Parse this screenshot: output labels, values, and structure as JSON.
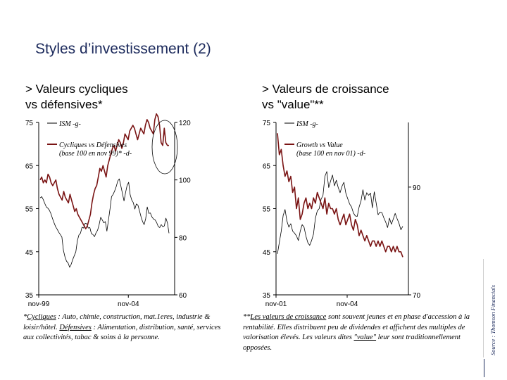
{
  "title": "Styles d’investissement (2)",
  "left": {
    "subtitle_line1": "> Valeurs cycliques",
    "subtitle_line2": "vs défensives*",
    "note": {
      "t1": "*",
      "t2": "Cycliques",
      "t3": " : Auto, chimie, construction, mat.1eres, industrie & loisir/hôtel. ",
      "t4": "Défensives",
      "t5": " : Alimentation, distribution, santé, services aux collectivités, tabac & soins à la personne."
    }
  },
  "right": {
    "subtitle_line1": "> Valeurs de croissance",
    "subtitle_line2": "vs \"value\"**",
    "note": {
      "t1": "**",
      "t2": "Les valeurs de croissance",
      "t3": " sont souvent jeunes et en phase d'accession à la rentabilité. Elles distribuent peu de dividendes et affichent des multiples de valorisation élevés. Les valeurs dites ",
      "t4": "\"value\"",
      "t5": " leur sont traditionnellement opposées."
    }
  },
  "source": "Source : Thomson Financials",
  "colors": {
    "title": "#1c2a5c",
    "series_ratio": "#7a1414",
    "series_ism": "#000000"
  },
  "chart_data": [
    {
      "type": "line",
      "title": "",
      "xlabel": "",
      "ylabel": "",
      "x_ticks": [
        "nov-99",
        "nov-04"
      ],
      "x_range": [
        "1999-11",
        "2007-06"
      ],
      "y_left_ticks": [
        "35",
        "45",
        "55",
        "65",
        "75"
      ],
      "y_left_lim": [
        35,
        75
      ],
      "y_right_ticks": [
        "60",
        "80",
        "100",
        "120"
      ],
      "y_right_lim": [
        60,
        120
      ],
      "legend": [
        "ISM -g-",
        "Cycliques vs Défensives (base 100 en nov 99)* -d-"
      ],
      "annotation": "circle-around-latest-values",
      "series": [
        {
          "name": "ISM -g-",
          "axis": "left",
          "color": "#000000",
          "values": [
            57.5,
            57.8,
            57.1,
            56.2,
            55.4,
            55.1,
            54.6,
            53.8,
            52.7,
            51.7,
            50.8,
            50.2,
            49.5,
            49.0,
            48.4,
            45.3,
            43.8,
            42.8,
            42.4,
            41.4,
            42.1,
            43.2,
            44.1,
            45.0,
            47.6,
            48.9,
            49.3,
            50.7,
            50.5,
            51.6,
            51.5,
            50.5,
            50.6,
            49.2,
            49.0,
            48.5,
            49.4,
            50.0,
            51.3,
            53.0,
            52.4,
            51.7,
            52.0,
            49.8,
            52.3,
            54.9,
            57.8,
            58.3,
            59.1,
            60.1,
            61.4,
            61.9,
            60.2,
            58.5,
            56.8,
            58.7,
            60.4,
            61.1,
            58.2,
            57.0,
            56.4,
            54.9,
            56.1,
            55.8,
            54.5,
            53.1,
            52.0,
            51.3,
            52.7,
            55.4,
            53.9,
            54.0,
            53.1,
            52.6,
            52.4,
            51.8,
            50.9,
            50.6,
            51.3,
            50.8,
            51.0,
            52.8,
            51.7,
            49.3
          ]
        },
        {
          "name": "Cycliques vs Défensives (base 100 en nov 99)* -d-",
          "axis": "right",
          "color": "#7a1414",
          "values": [
            100,
            101,
            99,
            100,
            99,
            102,
            101,
            99,
            98,
            99,
            100,
            97,
            95,
            94,
            93,
            96,
            94,
            93,
            92,
            95,
            93,
            91,
            89,
            90,
            88,
            87,
            86,
            85,
            84,
            83,
            84,
            86,
            88,
            92,
            95,
            97,
            98,
            101,
            104,
            103,
            105,
            103,
            101,
            105,
            107,
            109,
            111,
            112,
            110,
            112,
            114,
            113,
            111,
            113,
            116,
            115,
            114,
            117,
            118,
            119,
            118,
            116,
            114,
            116,
            118,
            117,
            116,
            119,
            121,
            120,
            118,
            117,
            116,
            121,
            123,
            122,
            119,
            113,
            112,
            118,
            113,
            112,
            112
          ]
        }
      ]
    },
    {
      "type": "line",
      "title": "",
      "xlabel": "",
      "ylabel": "",
      "x_ticks": [
        "nov-01",
        "nov-04"
      ],
      "x_range": [
        "2001-11",
        "2007-06"
      ],
      "y_left_ticks": [
        "35",
        "45",
        "55",
        "65",
        "75"
      ],
      "y_left_lim": [
        35,
        75
      ],
      "y_right_ticks": [
        "70",
        "90"
      ],
      "y_right_lim": [
        70,
        102
      ],
      "legend": [
        "ISM -g-",
        "Growth vs Value (base 100 en nov 01) -d-"
      ],
      "series": [
        {
          "name": "ISM -g-",
          "axis": "left",
          "color": "#000000",
          "values": [
            44.5,
            47.2,
            49.8,
            53.4,
            54.8,
            52.1,
            50.7,
            51.5,
            49.8,
            49.3,
            48.7,
            47.6,
            49.8,
            51.3,
            50.7,
            48.6,
            47.1,
            46.5,
            47.6,
            49.1,
            52.8,
            54.5,
            55.0,
            57.2,
            58.1,
            62.5,
            63.6,
            59.9,
            61.4,
            62.8,
            60.3,
            61.6,
            59.9,
            58.7,
            60.2,
            61.1,
            58.6,
            57.3,
            56.1,
            55.4,
            54.0,
            53.3,
            53.2,
            55.4,
            56.8,
            59.4,
            57.0,
            58.7,
            58.1,
            58.6,
            55.2,
            58.9,
            56.3,
            53.6,
            54.2,
            54.1,
            52.9,
            51.9,
            50.6,
            52.8,
            51.4,
            52.6,
            53.9,
            52.7,
            51.6,
            50.1,
            50.9
          ]
        },
        {
          "name": "Growth vs Value (base 100 en nov 01) -d-",
          "axis": "right",
          "color": "#7a1414",
          "values": [
            100,
            96,
            97,
            94,
            92,
            93,
            91,
            92,
            89,
            90,
            86,
            88,
            84,
            85,
            87,
            88,
            86,
            87,
            86,
            88,
            87,
            89,
            88,
            87,
            86,
            88,
            85,
            87,
            86,
            86,
            85,
            86,
            84,
            83,
            84,
            85,
            83,
            84,
            85,
            83,
            82,
            84,
            83,
            81,
            82,
            81,
            80,
            81,
            80,
            79,
            80,
            80,
            79,
            80,
            79,
            80,
            79,
            78,
            79,
            79,
            78,
            79,
            78,
            79,
            78,
            78,
            77
          ]
        }
      ]
    }
  ]
}
